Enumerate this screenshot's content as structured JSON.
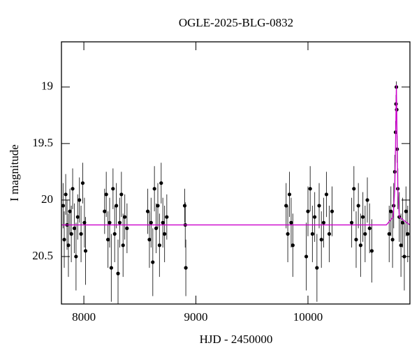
{
  "chart_data": {
    "type": "scatter",
    "title": "OGLE-2025-BLG-0832",
    "x_label": "HJD - 2450000",
    "y_label": "I magnitude",
    "xlim": [
      7800,
      10910
    ],
    "ylim": [
      18.6,
      20.92
    ],
    "invert_y": true,
    "xticks": [
      8000,
      9000,
      10000
    ],
    "yticks": [
      19,
      19.5,
      20,
      20.5
    ],
    "series": [
      {
        "name": "data",
        "kind": "errorbar",
        "color": "#000000",
        "x": [
          7815,
          7825,
          7838,
          7850,
          7862,
          7875,
          7888,
          7900,
          7915,
          7930,
          7945,
          7960,
          7975,
          7990,
          8005,
          8015,
          8185,
          8200,
          8215,
          8230,
          8245,
          8260,
          8275,
          8290,
          8305,
          8320,
          8335,
          8350,
          8365,
          8385,
          8570,
          8585,
          8600,
          8615,
          8630,
          8645,
          8660,
          8675,
          8690,
          8705,
          8720,
          8740,
          8900,
          8905,
          8910,
          9805,
          9820,
          9835,
          9850,
          9865,
          9985,
          10000,
          10020,
          10040,
          10060,
          10080,
          10100,
          10120,
          10140,
          10165,
          10190,
          10215,
          10390,
          10410,
          10430,
          10450,
          10470,
          10490,
          10510,
          10530,
          10550,
          10570,
          10725,
          10740,
          10755,
          10765,
          10775,
          10782,
          10786,
          10789,
          10792,
          10796,
          10802,
          10815,
          10830,
          10845,
          10860,
          10875,
          10890
        ],
        "values": [
          20.05,
          20.35,
          19.95,
          20.22,
          20.4,
          20.1,
          20.3,
          19.9,
          20.25,
          20.5,
          20.15,
          20.0,
          20.3,
          19.85,
          20.2,
          20.45,
          20.1,
          19.95,
          20.35,
          20.2,
          20.6,
          19.9,
          20.3,
          20.05,
          20.65,
          20.2,
          19.95,
          20.4,
          20.15,
          20.25,
          20.1,
          20.35,
          20.2,
          20.55,
          19.9,
          20.25,
          20.05,
          20.4,
          19.85,
          20.2,
          20.3,
          20.15,
          20.05,
          20.22,
          20.6,
          20.05,
          20.3,
          19.95,
          20.2,
          20.4,
          20.5,
          20.1,
          19.9,
          20.3,
          20.15,
          20.6,
          20.05,
          20.35,
          20.2,
          19.95,
          20.3,
          20.1,
          20.2,
          19.9,
          20.35,
          20.05,
          20.4,
          20.15,
          20.3,
          20.0,
          20.25,
          20.45,
          20.3,
          20.1,
          20.35,
          20.05,
          19.75,
          19.4,
          19.15,
          19.0,
          19.2,
          19.55,
          19.9,
          20.15,
          20.4,
          20.2,
          20.5,
          20.1,
          20.3
        ],
        "errors": [
          0.2,
          0.25,
          0.18,
          0.22,
          0.28,
          0.2,
          0.25,
          0.18,
          0.22,
          0.3,
          0.2,
          0.2,
          0.25,
          0.18,
          0.22,
          0.3,
          0.2,
          0.2,
          0.25,
          0.22,
          0.3,
          0.18,
          0.25,
          0.2,
          0.3,
          0.22,
          0.2,
          0.28,
          0.2,
          0.22,
          0.2,
          0.25,
          0.22,
          0.3,
          0.2,
          0.22,
          0.2,
          0.28,
          0.18,
          0.22,
          0.25,
          0.2,
          0.15,
          0.2,
          0.25,
          0.2,
          0.25,
          0.2,
          0.22,
          0.28,
          0.3,
          0.22,
          0.2,
          0.25,
          0.22,
          0.3,
          0.2,
          0.25,
          0.22,
          0.2,
          0.25,
          0.22,
          0.22,
          0.2,
          0.25,
          0.2,
          0.28,
          0.22,
          0.25,
          0.2,
          0.22,
          0.28,
          0.25,
          0.22,
          0.25,
          0.2,
          0.15,
          0.1,
          0.08,
          0.05,
          0.08,
          0.12,
          0.18,
          0.22,
          0.28,
          0.22,
          0.3,
          0.22,
          0.25
        ]
      },
      {
        "name": "model",
        "kind": "line",
        "color": "#cc00cc",
        "x": [
          7800,
          10700,
          10760,
          10775,
          10782,
          10786,
          10789,
          10792,
          10796,
          10802,
          10815,
          10910
        ],
        "values": [
          20.22,
          20.22,
          20.15,
          19.9,
          19.5,
          19.2,
          18.98,
          19.2,
          19.5,
          19.9,
          20.15,
          20.22
        ]
      }
    ]
  }
}
